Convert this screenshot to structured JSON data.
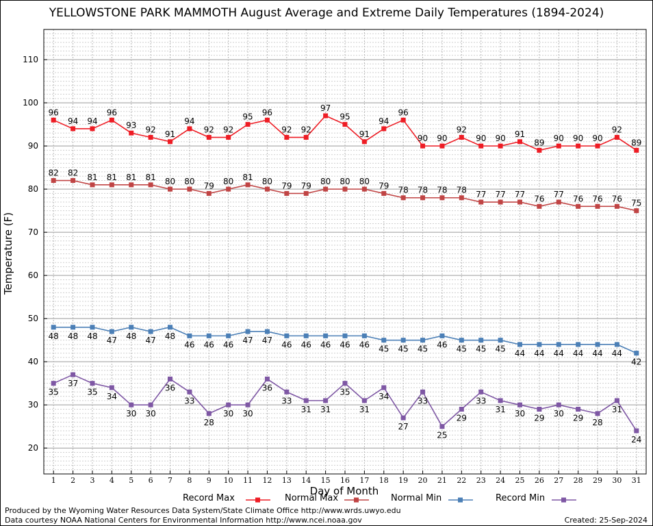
{
  "title": "YELLOWSTONE PARK MAMMOTH August Average and Extreme Daily Temperatures (1894-2024)",
  "credits": {
    "produced_by": "Produced by the Wyoming Water Resources Data System/State Climate Office http://www.wrds.uwyo.edu",
    "data_courtesy": "Data courtesy NOAA National Centers for Environmental Information http://www.ncei.noaa.gov",
    "created": "Created: 25-Sep-2024"
  },
  "chart_data": {
    "type": "line",
    "xlabel": "Day of Month",
    "ylabel": "Temperature (F)",
    "xlim": [
      0.5,
      31.5
    ],
    "ylim": [
      14,
      117
    ],
    "y_ticks": [
      20,
      30,
      40,
      50,
      60,
      70,
      80,
      90,
      100,
      110
    ],
    "grid": true,
    "legend_position": "bottom",
    "x": [
      1,
      2,
      3,
      4,
      5,
      6,
      7,
      8,
      9,
      10,
      11,
      12,
      13,
      14,
      15,
      16,
      17,
      18,
      19,
      20,
      21,
      22,
      23,
      24,
      25,
      26,
      27,
      28,
      29,
      30,
      31
    ],
    "series": [
      {
        "name": "Record Max",
        "color": "#ee1c24",
        "label_pos": "above",
        "values": [
          96,
          94,
          94,
          96,
          93,
          92,
          91,
          94,
          92,
          92,
          95,
          96,
          92,
          92,
          97,
          95,
          91,
          94,
          96,
          90,
          90,
          92,
          90,
          90,
          91,
          89,
          90,
          90,
          90,
          92,
          89
        ]
      },
      {
        "name": "Normal Max",
        "color": "#c04444",
        "label_pos": "above",
        "values": [
          82,
          82,
          81,
          81,
          81,
          81,
          80,
          80,
          79,
          80,
          81,
          80,
          79,
          79,
          80,
          80,
          80,
          79,
          78,
          78,
          78,
          78,
          77,
          77,
          77,
          76,
          77,
          76,
          76,
          76,
          75
        ]
      },
      {
        "name": "Normal Min",
        "color": "#4b7fb6",
        "label_pos": "below",
        "values": [
          48,
          48,
          48,
          47,
          48,
          47,
          48,
          46,
          46,
          46,
          47,
          47,
          46,
          46,
          46,
          46,
          46,
          45,
          45,
          45,
          46,
          45,
          45,
          45,
          44,
          44,
          44,
          44,
          44,
          44,
          42
        ]
      },
      {
        "name": "Record Min",
        "color": "#7e57a4",
        "label_pos": "below",
        "values": [
          35,
          37,
          35,
          34,
          30,
          30,
          36,
          33,
          28,
          30,
          30,
          36,
          33,
          31,
          31,
          35,
          31,
          34,
          27,
          33,
          25,
          29,
          33,
          31,
          30,
          29,
          30,
          29,
          28,
          31,
          24
        ]
      }
    ]
  }
}
